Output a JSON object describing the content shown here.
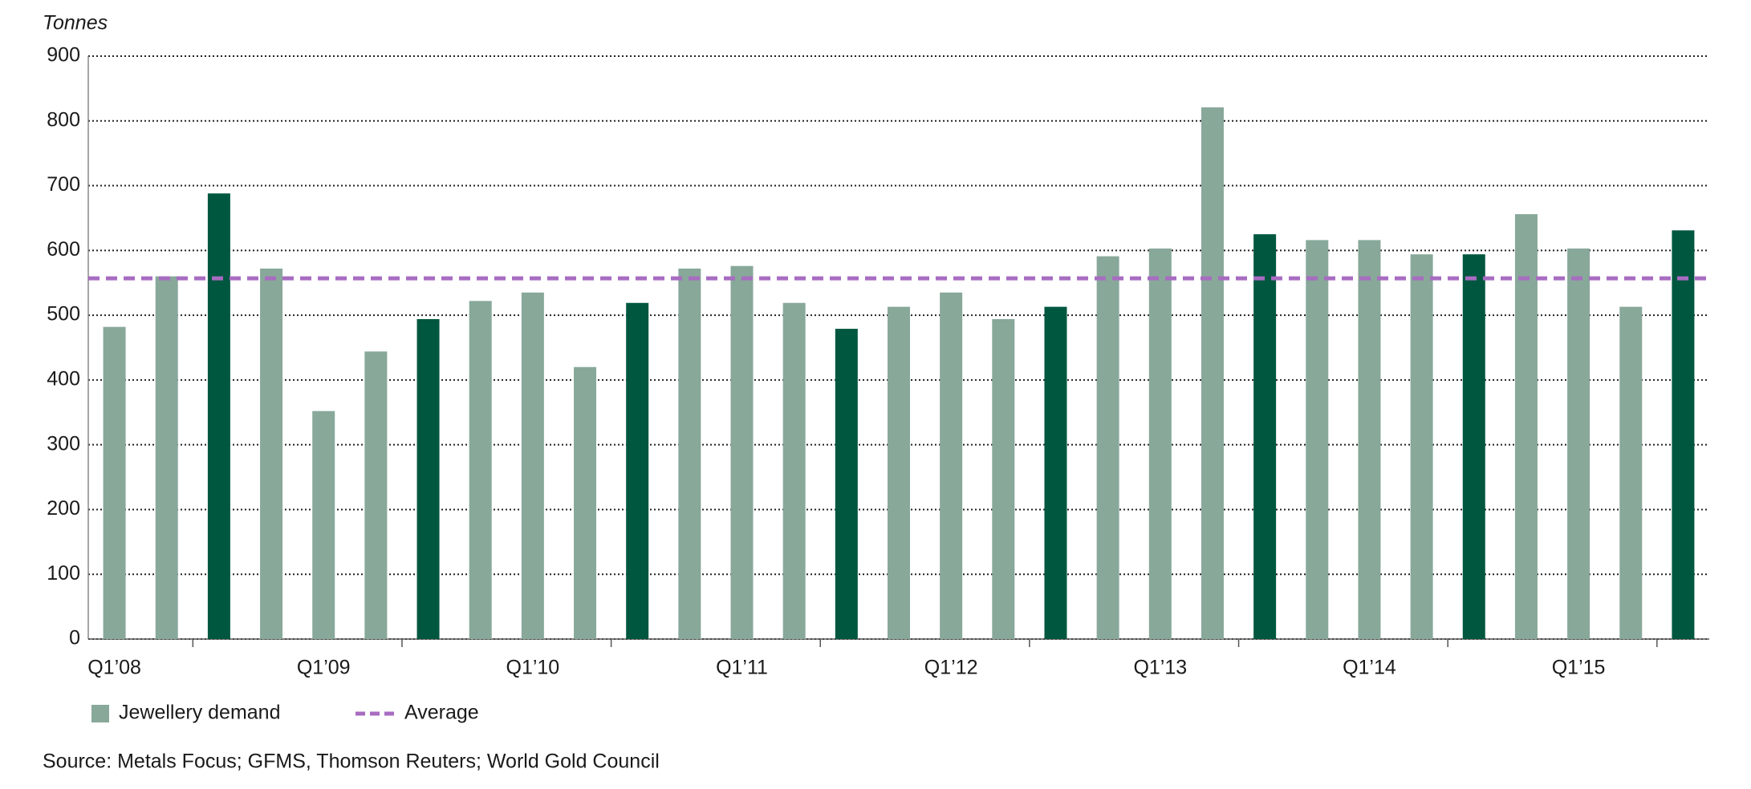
{
  "chart_data": {
    "type": "bar",
    "ylabel": "Tonnes",
    "source": "Source: Metals Focus; GFMS, Thomson Reuters; World Gold Council",
    "categories": [
      "Q1’08",
      null,
      null,
      null,
      "Q1’09",
      null,
      null,
      null,
      "Q1’10",
      null,
      null,
      null,
      "Q1’11",
      null,
      null,
      null,
      "Q1’12",
      null,
      null,
      null,
      "Q1’13",
      null,
      null,
      null,
      "Q1’14",
      null,
      null,
      null,
      "Q1’15",
      null,
      null
    ],
    "series": [
      {
        "name": "Jewellery demand",
        "color": "#88a89a",
        "values": [
          482,
          560,
          688,
          572,
          352,
          444,
          494,
          522,
          535,
          420,
          519,
          572,
          576,
          519,
          479,
          513,
          535,
          494,
          513,
          591,
          603,
          821,
          625,
          616,
          616,
          594,
          594,
          656,
          603,
          513,
          631
        ],
        "colors": [
          "#88a89a",
          "#88a89a",
          "#00573f",
          "#88a89a",
          "#88a89a",
          "#88a89a",
          "#00573f",
          "#88a89a",
          "#88a89a",
          "#88a89a",
          "#00573f",
          "#88a89a",
          "#88a89a",
          "#88a89a",
          "#00573f",
          "#88a89a",
          "#88a89a",
          "#88a89a",
          "#00573f",
          "#88a89a",
          "#88a89a",
          "#88a89a",
          "#00573f",
          "#88a89a",
          "#88a89a",
          "#88a89a",
          "#00573f",
          "#88a89a",
          "#88a89a",
          "#88a89a",
          "#00573f"
        ]
      }
    ],
    "average": {
      "name": "Average",
      "value": 557,
      "color": "#a86cc1"
    },
    "ylim": [
      0,
      900
    ],
    "yticks": [
      0,
      100,
      200,
      300,
      400,
      500,
      600,
      700,
      800,
      900
    ],
    "grid": true
  }
}
